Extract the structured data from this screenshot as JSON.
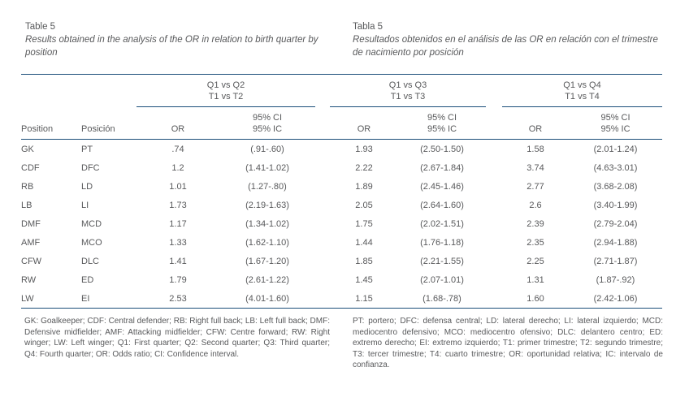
{
  "colors": {
    "rule": "#1b4e79",
    "text": "#58595b"
  },
  "titles": {
    "en": {
      "label": "Table 5",
      "caption": "Results obtained in the analysis of the OR in relation to birth quarter by position"
    },
    "es": {
      "label": "Tabla 5",
      "caption": "Resultados obtenidos en el análisis de las OR en relación con el trimestre de nacimiento por posición"
    }
  },
  "table": {
    "position_header_en": "Position",
    "position_header_es": "Posición",
    "groups": [
      {
        "line1": "Q1 vs Q2",
        "line2": "T1 vs T2",
        "or_label": "OR",
        "ci_line1": "95% CI",
        "ci_line2": "95% IC"
      },
      {
        "line1": "Q1 vs Q3",
        "line2": "T1 vs T3",
        "or_label": "OR",
        "ci_line1": "95% CI",
        "ci_line2": "95% IC"
      },
      {
        "line1": "Q1 vs Q4",
        "line2": "T1 vs T4",
        "or_label": "OR",
        "ci_line1": "95% CI",
        "ci_line2": "95% IC"
      }
    ],
    "rows": [
      {
        "pos_en": "GK",
        "pos_es": "PT",
        "or1": ".74",
        "ci1": "(.91-.60)",
        "or2": "1.93",
        "ci2": "(2.50-1.50)",
        "or3": "1.58",
        "ci3": "(2.01-1.24)"
      },
      {
        "pos_en": "CDF",
        "pos_es": "DFC",
        "or1": "1.2",
        "ci1": "(1.41-1.02)",
        "or2": "2.22",
        "ci2": "(2.67-1.84)",
        "or3": "3.74",
        "ci3": "(4.63-3.01)"
      },
      {
        "pos_en": "RB",
        "pos_es": "LD",
        "or1": "1.01",
        "ci1": "(1.27-.80)",
        "or2": "1.89",
        "ci2": "(2.45-1.46)",
        "or3": "2.77",
        "ci3": "(3.68-2.08)"
      },
      {
        "pos_en": "LB",
        "pos_es": "LI",
        "or1": "1.73",
        "ci1": "(2.19-1.63)",
        "or2": "2.05",
        "ci2": "(2.64-1.60)",
        "or3": "2.6",
        "ci3": "(3.40-1.99)"
      },
      {
        "pos_en": "DMF",
        "pos_es": "MCD",
        "or1": "1.17",
        "ci1": "(1.34-1.02)",
        "or2": "1.75",
        "ci2": "(2.02-1.51)",
        "or3": "2.39",
        "ci3": "(2.79-2.04)"
      },
      {
        "pos_en": "AMF",
        "pos_es": "MCO",
        "or1": "1.33",
        "ci1": "(1.62-1.10)",
        "or2": "1.44",
        "ci2": "(1.76-1.18)",
        "or3": "2.35",
        "ci3": "(2.94-1.88)"
      },
      {
        "pos_en": "CFW",
        "pos_es": "DLC",
        "or1": "1.41",
        "ci1": "(1.67-1.20)",
        "or2": "1.85",
        "ci2": "(2.21-1.55)",
        "or3": "2.25",
        "ci3": "(2.71-1.87)"
      },
      {
        "pos_en": "RW",
        "pos_es": "ED",
        "or1": "1.79",
        "ci1": "(2.61-1.22)",
        "or2": "1.45",
        "ci2": "(2.07-1.01)",
        "or3": "1.31",
        "ci3": "(1.87-.92)"
      },
      {
        "pos_en": "LW",
        "pos_es": "EI",
        "or1": "2.53",
        "ci1": "(4.01-1.60)",
        "or2": "1.15",
        "ci2": "(1.68-.78)",
        "or3": "1.60",
        "ci3": "(2.42-1.06)"
      }
    ]
  },
  "footnotes": {
    "en": "GK: Goalkeeper; CDF: Central defender; RB: Right full back; LB: Left full back; DMF: Defensive midfielder; AMF: Attacking midfielder; CFW: Centre forward; RW: Right winger; LW: Left winger; Q1: First quarter; Q2: Second quarter; Q3: Third quarter; Q4: Fourth quarter; OR: Odds ratio; CI: Confidence interval.",
    "es": "PT: portero; DFC: defensa central; LD: lateral derecho; LI: lateral izquierdo; MCD: mediocentro defensivo; MCO: mediocentro ofensivo; DLC: delantero centro; ED: extremo derecho; EI: extremo izquierdo; T1: primer trimestre; T2: segundo trimestre; T3: tercer trimestre; T4: cuarto trimestre; OR: oportunidad relativa; IC: intervalo de confianza."
  }
}
